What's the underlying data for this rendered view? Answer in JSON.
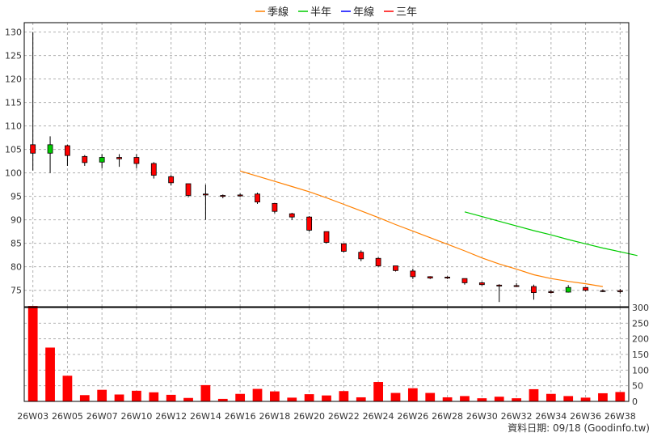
{
  "chart_data": {
    "type": "candlestick",
    "legend": [
      {
        "name": "季線",
        "color": "#ff8000"
      },
      {
        "name": "半年",
        "color": "#00cc00"
      },
      {
        "name": "年線",
        "color": "#0000ff"
      },
      {
        "name": "三年",
        "color": "#ff0000"
      }
    ],
    "legend_placement": "top-center",
    "grid": true,
    "price_axis": {
      "ylim": [
        71.5,
        132
      ],
      "ticks": [
        75,
        80,
        85,
        90,
        95,
        100,
        105,
        110,
        115,
        120,
        125,
        130
      ],
      "side": "left"
    },
    "volume_axis": {
      "ylim": [
        0,
        300
      ],
      "ticks": [
        0,
        50,
        100,
        150,
        200,
        250,
        300
      ],
      "side": "right"
    },
    "x_labels": [
      "26W03",
      "26W05",
      "26W07",
      "26W10",
      "26W12",
      "26W14",
      "26W16",
      "26W18",
      "26W20",
      "26W22",
      "26W24",
      "26W26",
      "26W28",
      "26W30",
      "26W32",
      "26W34",
      "26W36",
      "26W38"
    ],
    "candles": [
      {
        "o": 104.2,
        "h": 130.0,
        "l": 100.5,
        "c": 106.0,
        "v": 305
      },
      {
        "o": 106.0,
        "h": 107.8,
        "l": 100.0,
        "c": 104.2,
        "v": 172
      },
      {
        "o": 103.7,
        "h": 106.0,
        "l": 101.5,
        "c": 105.8,
        "v": 82
      },
      {
        "o": 102.2,
        "h": 103.8,
        "l": 101.5,
        "c": 103.5,
        "v": 20
      },
      {
        "o": 103.3,
        "h": 104.0,
        "l": 101.0,
        "c": 102.3,
        "v": 37
      },
      {
        "o": 103.0,
        "h": 104.0,
        "l": 101.3,
        "c": 103.3,
        "v": 22
      },
      {
        "o": 102.0,
        "h": 104.0,
        "l": 101.0,
        "c": 103.3,
        "v": 34
      },
      {
        "o": 99.5,
        "h": 102.3,
        "l": 98.8,
        "c": 102.0,
        "v": 29
      },
      {
        "o": 97.9,
        "h": 99.5,
        "l": 97.3,
        "c": 99.2,
        "v": 21
      },
      {
        "o": 95.2,
        "h": 97.7,
        "l": 94.8,
        "c": 97.7,
        "v": 11
      },
      {
        "o": 95.3,
        "h": 97.5,
        "l": 90.0,
        "c": 95.5,
        "v": 52
      },
      {
        "o": 95.0,
        "h": 95.4,
        "l": 94.6,
        "c": 95.2,
        "v": 8
      },
      {
        "o": 95.1,
        "h": 95.6,
        "l": 94.9,
        "c": 95.3,
        "v": 24
      },
      {
        "o": 93.8,
        "h": 95.8,
        "l": 93.4,
        "c": 95.5,
        "v": 40
      },
      {
        "o": 91.8,
        "h": 93.5,
        "l": 91.4,
        "c": 93.5,
        "v": 32
      },
      {
        "o": 90.6,
        "h": 91.5,
        "l": 90.0,
        "c": 91.3,
        "v": 12
      },
      {
        "o": 87.8,
        "h": 90.8,
        "l": 87.5,
        "c": 90.6,
        "v": 23
      },
      {
        "o": 85.2,
        "h": 87.5,
        "l": 85.0,
        "c": 87.5,
        "v": 19
      },
      {
        "o": 83.3,
        "h": 85.0,
        "l": 83.1,
        "c": 84.9,
        "v": 33
      },
      {
        "o": 81.7,
        "h": 83.5,
        "l": 81.2,
        "c": 83.1,
        "v": 13
      },
      {
        "o": 80.2,
        "h": 82.0,
        "l": 80.0,
        "c": 81.8,
        "v": 62
      },
      {
        "o": 79.2,
        "h": 80.2,
        "l": 79.0,
        "c": 80.2,
        "v": 27
      },
      {
        "o": 77.9,
        "h": 79.6,
        "l": 77.4,
        "c": 79.1,
        "v": 42
      },
      {
        "o": 77.6,
        "h": 78.0,
        "l": 77.4,
        "c": 77.9,
        "v": 27
      },
      {
        "o": 77.6,
        "h": 78.0,
        "l": 77.4,
        "c": 77.8,
        "v": 13
      },
      {
        "o": 76.6,
        "h": 77.5,
        "l": 76.2,
        "c": 77.5,
        "v": 17
      },
      {
        "o": 76.2,
        "h": 76.8,
        "l": 76.0,
        "c": 76.6,
        "v": 10
      },
      {
        "o": 75.9,
        "h": 76.3,
        "l": 72.5,
        "c": 76.1,
        "v": 15
      },
      {
        "o": 75.8,
        "h": 76.5,
        "l": 75.7,
        "c": 76.0,
        "v": 10
      },
      {
        "o": 74.5,
        "h": 76.2,
        "l": 73.0,
        "c": 75.8,
        "v": 39
      },
      {
        "o": 74.5,
        "h": 75.1,
        "l": 74.3,
        "c": 74.7,
        "v": 24
      },
      {
        "o": 75.6,
        "h": 76.1,
        "l": 74.5,
        "c": 74.6,
        "v": 17
      },
      {
        "o": 75.0,
        "h": 75.6,
        "l": 74.8,
        "c": 75.6,
        "v": 12
      },
      {
        "o": 74.8,
        "h": 75.2,
        "l": 74.6,
        "c": 74.9,
        "v": 26
      },
      {
        "o": 74.7,
        "h": 75.3,
        "l": 74.3,
        "c": 74.9,
        "v": 30
      }
    ],
    "ma_lines": [
      {
        "name": "季線",
        "color": "#ff8000",
        "start_index": 12,
        "values": [
          100.4,
          99.3,
          98.2,
          97.1,
          96.0,
          94.7,
          93.3,
          91.9,
          90.5,
          89.0,
          87.6,
          86.2,
          84.8,
          83.4,
          81.9,
          80.6,
          79.5,
          78.3,
          77.5,
          76.9,
          76.4,
          75.8
        ]
      },
      {
        "name": "半年",
        "color": "#00cc00",
        "start_index": 25,
        "values": [
          91.7,
          90.7,
          89.7,
          88.7,
          87.7,
          86.8,
          85.8,
          84.9,
          84.0,
          83.2,
          82.4
        ]
      }
    ],
    "footer": "資料日期: 09/18  (Goodinfo.tw)"
  }
}
